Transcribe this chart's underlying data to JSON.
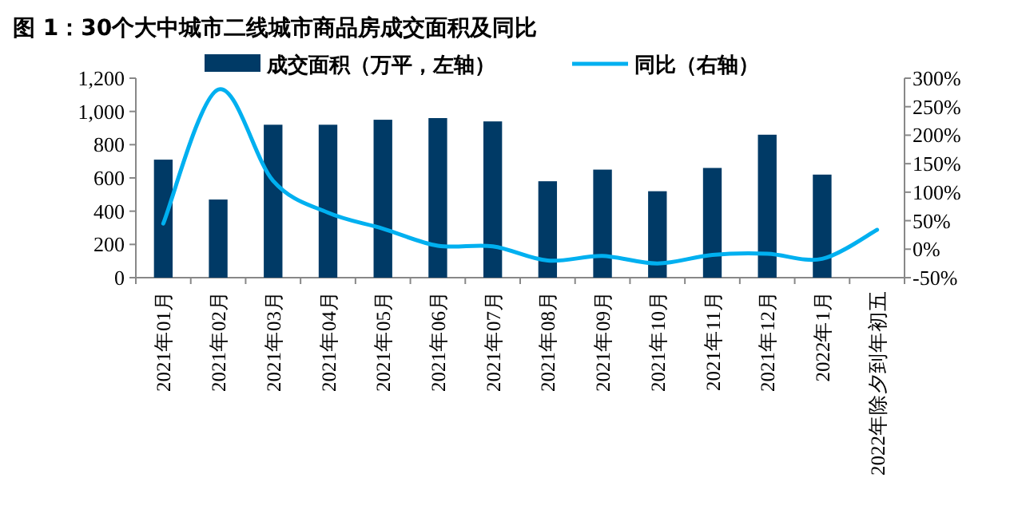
{
  "chart_data": {
    "type": "bar",
    "title": "图 1：30个大中城市二线城市商品房成交面积及同比",
    "categories": [
      "2021年01月",
      "2021年02月",
      "2021年03月",
      "2021年04月",
      "2021年05月",
      "2021年06月",
      "2021年07月",
      "2021年08月",
      "2021年09月",
      "2021年10月",
      "2021年11月",
      "2021年12月",
      "2022年1月",
      "2022年除夕到年初五"
    ],
    "series": [
      {
        "name": "成交面积（万平，左轴）",
        "type": "bar",
        "color": "#003a66",
        "values": [
          710,
          470,
          920,
          920,
          950,
          960,
          940,
          580,
          650,
          520,
          660,
          860,
          620,
          null
        ]
      },
      {
        "name": "同比（右轴）",
        "type": "line",
        "axis": "y2",
        "color": "#00b0f0",
        "values": [
          45,
          280,
          120,
          64,
          36,
          6,
          5,
          -20,
          -12,
          -25,
          -10,
          -8,
          -17,
          34
        ]
      }
    ],
    "ylim": [
      0,
      1200
    ],
    "yticks": [
      0,
      200,
      400,
      600,
      800,
      {
        "value": 1000,
        "label": "1,000"
      },
      {
        "value": 1200,
        "label": "1,200"
      }
    ],
    "y2lim": [
      -50,
      300
    ],
    "y2ticks": [
      {
        "value": -50,
        "label": "-50%"
      },
      {
        "value": 0,
        "label": "0%"
      },
      {
        "value": 50,
        "label": "50%"
      },
      {
        "value": 100,
        "label": "100%"
      },
      {
        "value": 150,
        "label": "150%"
      },
      {
        "value": 200,
        "label": "200%"
      },
      {
        "value": 250,
        "label": "250%"
      },
      {
        "value": 300,
        "label": "300%"
      }
    ],
    "legend": "top",
    "grid": false,
    "marker": "none",
    "line_style": "solid"
  }
}
